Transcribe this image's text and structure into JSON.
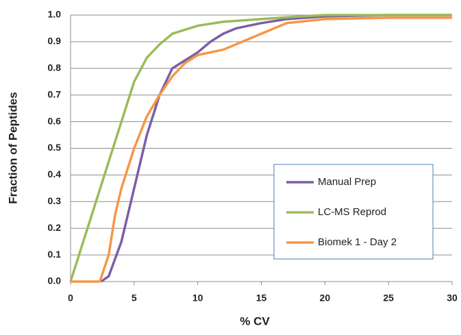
{
  "chart_data": {
    "type": "line",
    "xlabel": "% CV",
    "ylabel": "Fraction of Peptides",
    "xlim": [
      0,
      30
    ],
    "xticks": [
      0,
      5,
      10,
      15,
      20,
      25,
      30
    ],
    "ylim": [
      0,
      1
    ],
    "yticks": [
      {
        "value": 0,
        "label": "0.0"
      },
      0.1,
      0.2,
      0.3,
      0.4,
      0.5,
      0.6,
      0.7,
      0.8,
      0.9,
      {
        "value": 1,
        "label": "1.0"
      }
    ],
    "grid": true,
    "legend": "lower right",
    "series": [
      {
        "name": "Manual Prep",
        "color": "#7b5ea7",
        "x": [
          2.4,
          3,
          4,
          5,
          6,
          7,
          8,
          9,
          10,
          11,
          12,
          13,
          15,
          17,
          20,
          25,
          30
        ],
        "values": [
          0,
          0.02,
          0.15,
          0.35,
          0.55,
          0.7,
          0.8,
          0.83,
          0.86,
          0.9,
          0.93,
          0.95,
          0.97,
          0.985,
          0.995,
          1,
          1
        ]
      },
      {
        "name": "LC-MS Reprod",
        "color": "#9bbb59",
        "x": [
          0,
          1,
          2,
          3,
          4,
          5,
          6,
          7,
          8,
          10,
          12,
          15,
          18,
          20,
          30
        ],
        "values": [
          0,
          0.15,
          0.3,
          0.45,
          0.6,
          0.75,
          0.84,
          0.89,
          0.93,
          0.96,
          0.975,
          0.985,
          0.995,
          1,
          1
        ]
      },
      {
        "name": "Biomek 1 - Day 2",
        "color": "#f79646",
        "x": [
          0,
          0.5,
          2.3,
          3,
          3.5,
          4,
          5,
          6,
          7,
          8,
          9,
          10,
          12,
          13,
          15,
          17,
          20,
          25,
          30
        ],
        "values": [
          0,
          0,
          0,
          0.1,
          0.25,
          0.35,
          0.5,
          0.62,
          0.7,
          0.77,
          0.82,
          0.85,
          0.87,
          0.89,
          0.93,
          0.97,
          0.985,
          0.99,
          0.99
        ]
      }
    ]
  }
}
